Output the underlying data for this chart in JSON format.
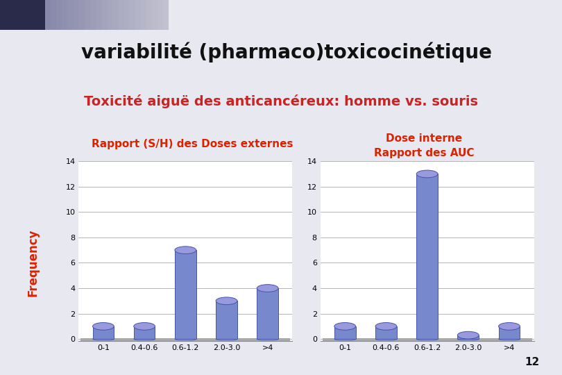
{
  "title": "variabilité (pharmaco)toxicocinétique",
  "subtitle": "Toxicité aiguë des anticancéreux: homme vs. souris",
  "slide_bg": "#e8e8f0",
  "header_strip_color": "#8888aa",
  "header_dark_sq": "#2a2a4a",
  "title_box_color": "#aaaacc",
  "title_text_color": "#111111",
  "subtitle_box_color": "#ffffff",
  "subtitle_border_color": "#cc2222",
  "subtitle_text_color": "#cc2222",
  "panel_bg": "#b0b0c8",
  "panel_border_color": "#7777aa",
  "label_bg": "#111111",
  "label_text_color": "#dd2200",
  "freq_bg": "#111111",
  "freq_text_color": "#dd2200",
  "chart_bg": "#ffffff",
  "chart_floor_color": "#aaaaaa",
  "bar_face_color": "#7788cc",
  "bar_top_color": "#9999dd",
  "bar_edge_color": "#4455aa",
  "grid_color": "#aaaaaa",
  "categories": [
    "0-1",
    "0.4-0.6",
    "0.6-1.2",
    "2.0-3.0",
    ">4"
  ],
  "values_left": [
    1,
    1,
    7,
    3,
    4
  ],
  "values_right": [
    1,
    1,
    13,
    0.3,
    1
  ],
  "ylim": [
    0,
    14
  ],
  "yticks": [
    0,
    2,
    4,
    6,
    8,
    10,
    12,
    14
  ],
  "label_left": "Rapport (S/H) des Doses externes",
  "label_right_1": "Dose interne",
  "label_right_2": "Rapport des AUC",
  "ylabel": "Frequency",
  "page_num": "12",
  "title_fontsize": 20,
  "subtitle_fontsize": 14,
  "label_fontsize": 11,
  "tick_fontsize": 8,
  "freq_fontsize": 12
}
